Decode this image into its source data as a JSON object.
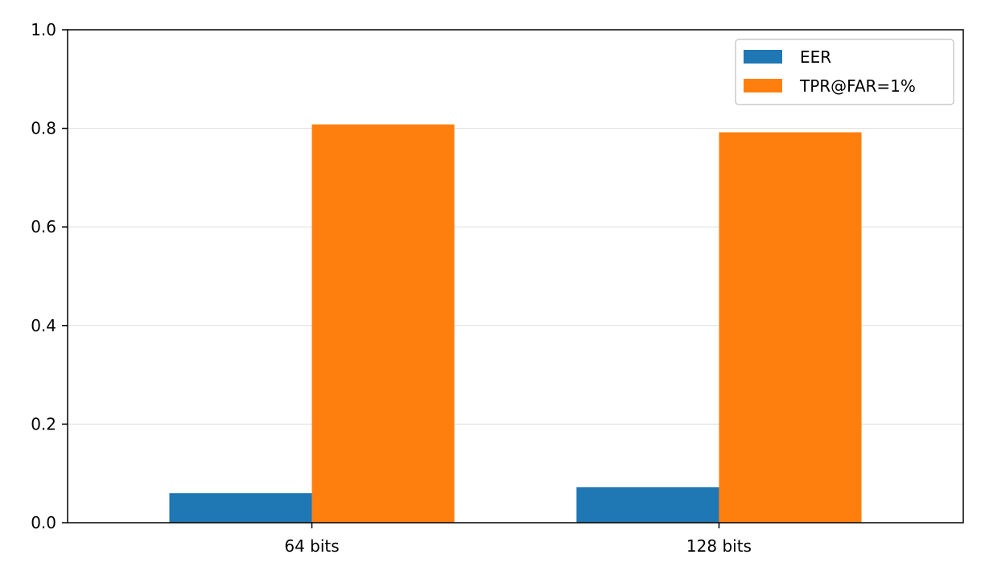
{
  "chart_data": {
    "type": "bar",
    "title": "",
    "xlabel": "",
    "ylabel": "",
    "categories": [
      "64 bits",
      "128 bits"
    ],
    "series": [
      {
        "name": "EER",
        "color": "#1f77b4",
        "values": [
          0.06,
          0.072
        ]
      },
      {
        "name": "TPR@FAR=1%",
        "color": "#ff7f0e",
        "values": [
          0.808,
          0.792
        ]
      }
    ],
    "ylim": [
      0,
      1.0
    ],
    "yticks": [
      0.0,
      0.2,
      0.4,
      0.6,
      0.8,
      1.0
    ],
    "ytick_labels": [
      "0.0",
      "0.2",
      "0.4",
      "0.6",
      "0.8",
      "1.0"
    ],
    "grid": "y",
    "legend_position": "top-right"
  }
}
